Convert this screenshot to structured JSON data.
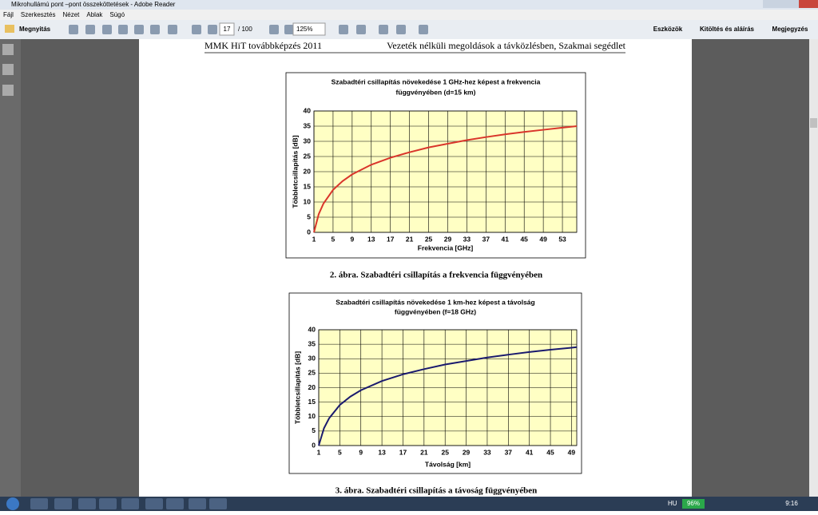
{
  "window": {
    "title": "Mikrohullámú pont –pont összeköttetések - Adobe Reader"
  },
  "menu": [
    "Fájl",
    "Szerkesztés",
    "Nézet",
    "Ablak",
    "Súgó"
  ],
  "toolbar": {
    "open": "Megnyitás",
    "page": "17",
    "page_total": "/ 100",
    "zoom": "125%",
    "tabs": [
      "Eszközök",
      "Kitöltés és aláírás",
      "Megjegyzés"
    ]
  },
  "document": {
    "header_left": "MMK HiT továbbképzés 2011",
    "header_right": "Vezeték nélküli megoldások a távközlésben, Szakmai segédlet",
    "captions": [
      "2. ábra. Szabadtéri csillapítás a frekvencia függvényében",
      "3. ábra. Szabadtéri csillapítás a távoság függvényében"
    ]
  },
  "chart_data": [
    {
      "type": "line",
      "title": [
        "Szabadtéri csillapítás növekedése 1 GHz-hez képest a frekvencia",
        "függvényében  (d=15 km)"
      ],
      "x_label": "Frekvencia [GHz]",
      "y_label": "Többletcsillapítás [dB]",
      "x": [
        1,
        2,
        3,
        5,
        7,
        9,
        13,
        17,
        21,
        25,
        29,
        33,
        37,
        41,
        45,
        49,
        53,
        56
      ],
      "values": [
        0,
        6.0,
        9.5,
        14.0,
        16.9,
        19.1,
        22.3,
        24.6,
        26.4,
        28.0,
        29.2,
        30.4,
        31.4,
        32.3,
        33.1,
        33.8,
        34.5,
        35.0
      ],
      "color": "#d9352b",
      "xlim": [
        1,
        56
      ],
      "ylim": [
        0,
        40
      ],
      "xticks": [
        1,
        5,
        9,
        13,
        17,
        21,
        25,
        29,
        33,
        37,
        41,
        45,
        49,
        53
      ],
      "yticks": [
        0,
        5,
        10,
        15,
        20,
        25,
        30,
        35,
        40
      ],
      "grid": true,
      "plot_color": "#ffffc4"
    },
    {
      "type": "line",
      "title": [
        "Szabadtéri csillapítás növekedése 1 km-hez képest a távolság",
        "függvényében      (f=18 GHz)"
      ],
      "x_label": "Távolság [km]",
      "y_label": "Többletcsillapítás [dB]",
      "x": [
        1,
        2,
        3,
        5,
        7,
        9,
        13,
        17,
        21,
        25,
        29,
        33,
        37,
        41,
        45,
        49,
        50
      ],
      "values": [
        0,
        6.0,
        9.5,
        14.0,
        16.9,
        19.1,
        22.3,
        24.6,
        26.4,
        28.0,
        29.2,
        30.4,
        31.4,
        32.3,
        33.1,
        33.8,
        34.0
      ],
      "color": "#1a1a6e",
      "xlim": [
        1,
        50
      ],
      "ylim": [
        0,
        40
      ],
      "xticks": [
        1,
        5,
        9,
        13,
        17,
        21,
        25,
        29,
        33,
        37,
        41,
        45,
        49
      ],
      "yticks": [
        0,
        5,
        10,
        15,
        20,
        25,
        30,
        35,
        40
      ],
      "grid": true,
      "plot_color": "#ffffc4"
    }
  ],
  "taskbar": {
    "lang": "HU",
    "battery": "96%",
    "time": "9:16"
  }
}
